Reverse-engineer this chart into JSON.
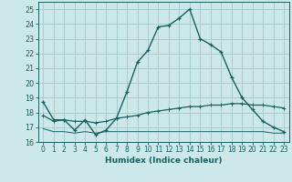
{
  "title": "",
  "xlabel": "Humidex (Indice chaleur)",
  "bg_color": "#cce8e8",
  "grid_color": "#a8cccc",
  "line_color": "#1a6060",
  "xlim": [
    -0.5,
    23.5
  ],
  "ylim": [
    16,
    25.5
  ],
  "xticks": [
    0,
    1,
    2,
    3,
    4,
    5,
    6,
    7,
    8,
    9,
    10,
    11,
    12,
    13,
    14,
    15,
    16,
    17,
    18,
    19,
    20,
    21,
    22,
    23
  ],
  "yticks": [
    16,
    17,
    18,
    19,
    20,
    21,
    22,
    23,
    24,
    25
  ],
  "line1_x": [
    0,
    1,
    2,
    3,
    4,
    5,
    6,
    7,
    8,
    9,
    10,
    11,
    12,
    13,
    14,
    15,
    16,
    17,
    18,
    19,
    20,
    21,
    22,
    23
  ],
  "line1_y": [
    18.7,
    17.5,
    17.5,
    16.8,
    17.5,
    16.5,
    16.8,
    17.6,
    19.4,
    21.4,
    22.2,
    23.8,
    23.9,
    24.4,
    25.0,
    23.0,
    22.6,
    22.1,
    20.4,
    19.0,
    18.2,
    17.4,
    17.0,
    16.7
  ],
  "line2_x": [
    0,
    1,
    2,
    3,
    4,
    5,
    6,
    7,
    8,
    9,
    10,
    11,
    12,
    13,
    14,
    15,
    16,
    17,
    18,
    19,
    20,
    21,
    22,
    23
  ],
  "line2_y": [
    17.8,
    17.4,
    17.5,
    17.4,
    17.4,
    17.3,
    17.4,
    17.6,
    17.7,
    17.8,
    18.0,
    18.1,
    18.2,
    18.3,
    18.4,
    18.4,
    18.5,
    18.5,
    18.6,
    18.6,
    18.5,
    18.5,
    18.4,
    18.3
  ],
  "line3_x": [
    0,
    1,
    2,
    3,
    4,
    5,
    6,
    7,
    8,
    9,
    10,
    11,
    12,
    13,
    14,
    15,
    16,
    17,
    18,
    19,
    20,
    21,
    22,
    23
  ],
  "line3_y": [
    16.9,
    16.7,
    16.7,
    16.6,
    16.7,
    16.6,
    16.7,
    16.7,
    16.7,
    16.7,
    16.7,
    16.7,
    16.7,
    16.7,
    16.7,
    16.7,
    16.7,
    16.7,
    16.7,
    16.7,
    16.7,
    16.7,
    16.6,
    16.6
  ]
}
